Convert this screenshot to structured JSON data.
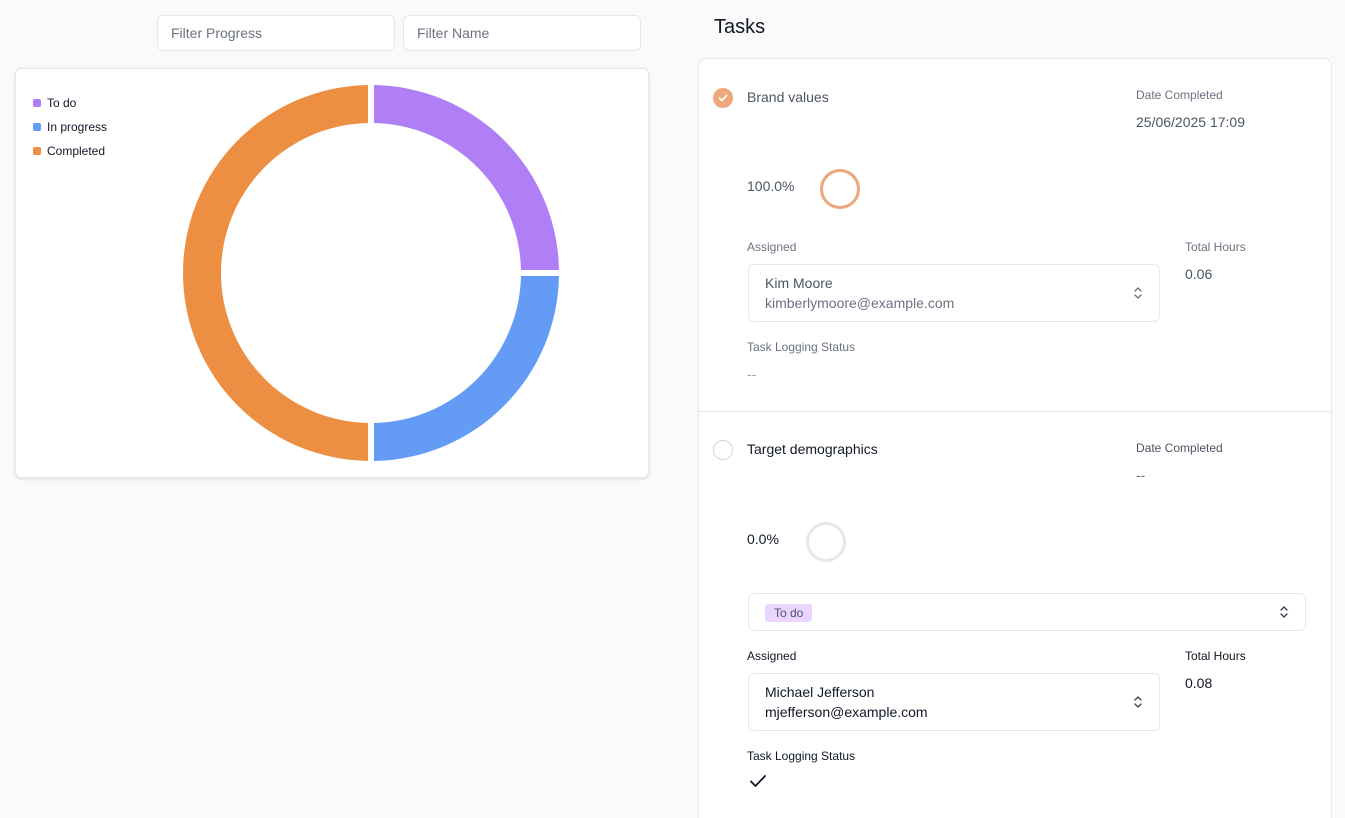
{
  "filters": {
    "progress_placeholder": "Filter Progress",
    "name_placeholder": "Filter Name"
  },
  "chart_data": {
    "type": "pie",
    "donut": true,
    "legend_position": "top-left",
    "categories": [
      "To do",
      "In progress",
      "Completed"
    ],
    "values": [
      1,
      1,
      2
    ],
    "colors": [
      "#b07ef5",
      "#649cf5",
      "#ec8f42"
    ]
  },
  "tasks_title": "Tasks",
  "tasks": [
    {
      "name": "Brand values",
      "completed": true,
      "check_color": "#eda77a",
      "date_completed_label": "Date Completed",
      "date_completed": "25/06/2025 17:09",
      "progress_text": "100.0%",
      "progress": 1.0,
      "assigned_label": "Assigned",
      "assignee_name": "Kim Moore",
      "assignee_email": "kimberlymoore@example.com",
      "total_hours_label": "Total Hours",
      "total_hours": "0.06",
      "logging_label": "Task Logging Status",
      "logging_status": "--"
    },
    {
      "name": "Target demographics",
      "completed": false,
      "date_completed_label": "Date Completed",
      "date_completed": "--",
      "progress_text": "0.0%",
      "progress": 0.0,
      "status": "To do",
      "assigned_label": "Assigned",
      "assignee_name": "Michael Jefferson",
      "assignee_email": "mjefferson@example.com",
      "total_hours_label": "Total Hours",
      "total_hours": "0.08",
      "logging_label": "Task Logging Status",
      "logging_status_icon": "check-icon"
    }
  ]
}
